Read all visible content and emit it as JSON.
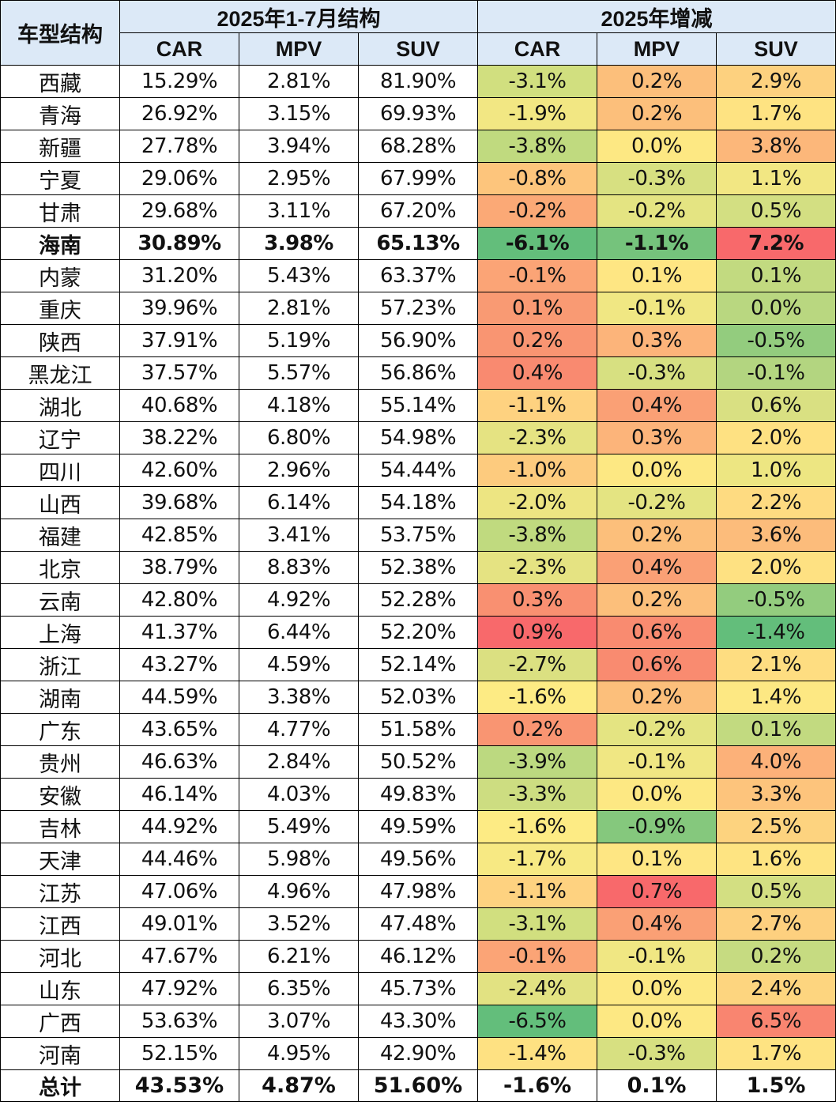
{
  "header": {
    "row_label": "车型结构",
    "group1": "2025年1-7月结构",
    "group2": "2025年增减",
    "columns": [
      "CAR",
      "MPV",
      "SUV",
      "CAR",
      "MPV",
      "SUV"
    ]
  },
  "rows": [
    {
      "name": "西藏",
      "values": [
        "15.29%",
        "2.81%",
        "81.90%",
        "-3.1%",
        "0.2%",
        "2.9%"
      ],
      "colors": [
        "#d1df7f",
        "#fcbf7b",
        "#fdd17f"
      ]
    },
    {
      "name": "青海",
      "values": [
        "26.92%",
        "3.15%",
        "69.93%",
        "-1.9%",
        "0.2%",
        "1.7%"
      ],
      "colors": [
        "#f2e783",
        "#fcbf7b",
        "#fee382"
      ]
    },
    {
      "name": "新疆",
      "values": [
        "27.78%",
        "3.94%",
        "68.28%",
        "-3.8%",
        "0.0%",
        "3.8%"
      ],
      "colors": [
        "#c0da7f",
        "#fde883",
        "#fcb77a"
      ]
    },
    {
      "name": "宁夏",
      "values": [
        "29.06%",
        "2.95%",
        "67.99%",
        "-0.8%",
        "-0.3%",
        "1.1%"
      ],
      "colors": [
        "#fdc57c",
        "#d7e081",
        "#f2e783"
      ]
    },
    {
      "name": "甘肃",
      "values": [
        "29.68%",
        "3.11%",
        "67.20%",
        "-0.2%",
        "-0.2%",
        "0.5%"
      ],
      "colors": [
        "#fba976",
        "#e4e482",
        "#d3df82"
      ]
    },
    {
      "name": "海南",
      "values": [
        "30.89%",
        "3.98%",
        "65.13%",
        "-6.1%",
        "-1.1%",
        "7.2%"
      ],
      "colors": [
        "#63be7b",
        "#75c37c",
        "#f8696b"
      ],
      "bold": true
    },
    {
      "name": "内蒙",
      "values": [
        "31.20%",
        "5.43%",
        "63.37%",
        "-0.1%",
        "0.1%",
        "0.1%"
      ],
      "colors": [
        "#fba476",
        "#fee683",
        "#c2da80"
      ]
    },
    {
      "name": "重庆",
      "values": [
        "39.96%",
        "2.81%",
        "57.23%",
        "0.1%",
        "-0.1%",
        "0.0%"
      ],
      "colors": [
        "#f99a73",
        "#f0e783",
        "#b9d780"
      ]
    },
    {
      "name": "陕西",
      "values": [
        "37.91%",
        "5.19%",
        "56.90%",
        "0.2%",
        "0.3%",
        "-0.5%"
      ],
      "colors": [
        "#f99572",
        "#fcb47a",
        "#93cc7e"
      ]
    },
    {
      "name": "黑龙江",
      "values": [
        "37.57%",
        "5.57%",
        "56.86%",
        "0.4%",
        "-0.3%",
        "-0.1%"
      ],
      "colors": [
        "#f98a70",
        "#d7e081",
        "#b3d580"
      ]
    },
    {
      "name": "湖北",
      "values": [
        "40.68%",
        "4.18%",
        "55.14%",
        "-1.1%",
        "0.4%",
        "0.6%"
      ],
      "colors": [
        "#fed280",
        "#faa075",
        "#d9e082"
      ]
    },
    {
      "name": "辽宁",
      "values": [
        "38.22%",
        "6.80%",
        "54.98%",
        "-2.3%",
        "0.3%",
        "2.0%"
      ],
      "colors": [
        "#e5e382",
        "#fcb47a",
        "#fee182"
      ]
    },
    {
      "name": "四川",
      "values": [
        "42.60%",
        "2.96%",
        "54.44%",
        "-1.0%",
        "0.0%",
        "1.0%"
      ],
      "colors": [
        "#fdcb7e",
        "#fde883",
        "#ede682"
      ]
    },
    {
      "name": "山西",
      "values": [
        "39.68%",
        "6.14%",
        "54.18%",
        "-2.0%",
        "-0.2%",
        "2.2%"
      ],
      "colors": [
        "#ede582",
        "#e4e482",
        "#fedb81"
      ]
    },
    {
      "name": "福建",
      "values": [
        "42.85%",
        "3.41%",
        "53.75%",
        "-3.8%",
        "0.2%",
        "3.6%"
      ],
      "colors": [
        "#c0da7f",
        "#fcbf7b",
        "#fcbc7b"
      ]
    },
    {
      "name": "北京",
      "values": [
        "38.79%",
        "8.83%",
        "52.38%",
        "-2.3%",
        "0.4%",
        "2.0%"
      ],
      "colors": [
        "#e5e382",
        "#faa075",
        "#fee182"
      ]
    },
    {
      "name": "云南",
      "values": [
        "42.80%",
        "4.92%",
        "52.28%",
        "0.3%",
        "0.2%",
        "-0.5%"
      ],
      "colors": [
        "#f99071",
        "#fcbf7b",
        "#93cc7e"
      ]
    },
    {
      "name": "上海",
      "values": [
        "41.37%",
        "6.44%",
        "52.20%",
        "0.9%",
        "0.6%",
        "-1.4%"
      ],
      "colors": [
        "#f8696b",
        "#f98b70",
        "#63be7b"
      ]
    },
    {
      "name": "浙江",
      "values": [
        "43.27%",
        "4.59%",
        "52.14%",
        "-2.7%",
        "0.6%",
        "2.1%"
      ],
      "colors": [
        "#dbe081",
        "#f98b70",
        "#fedd81"
      ]
    },
    {
      "name": "湖南",
      "values": [
        "44.59%",
        "3.38%",
        "52.03%",
        "-1.6%",
        "0.2%",
        "1.4%"
      ],
      "colors": [
        "#fdeb84",
        "#fcbf7b",
        "#fde883"
      ]
    },
    {
      "name": "广东",
      "values": [
        "43.65%",
        "4.77%",
        "51.58%",
        "0.2%",
        "-0.2%",
        "0.1%"
      ],
      "colors": [
        "#f99572",
        "#e4e482",
        "#c2da80"
      ]
    },
    {
      "name": "贵州",
      "values": [
        "46.63%",
        "2.84%",
        "50.52%",
        "-3.9%",
        "-0.1%",
        "4.0%"
      ],
      "colors": [
        "#bcd980",
        "#f0e783",
        "#fcb179"
      ]
    },
    {
      "name": "安徽",
      "values": [
        "46.14%",
        "4.03%",
        "49.83%",
        "-3.3%",
        "0.0%",
        "3.3%"
      ],
      "colors": [
        "#cddd81",
        "#fde883",
        "#fdc47c"
      ]
    },
    {
      "name": "吉林",
      "values": [
        "44.92%",
        "5.49%",
        "49.59%",
        "-1.6%",
        "-0.9%",
        "2.5%"
      ],
      "colors": [
        "#fdeb84",
        "#85c87d",
        "#fdd37f"
      ]
    },
    {
      "name": "天津",
      "values": [
        "44.46%",
        "5.98%",
        "49.56%",
        "-1.7%",
        "0.1%",
        "1.6%"
      ],
      "colors": [
        "#f7e983",
        "#fee683",
        "#fee482"
      ]
    },
    {
      "name": "江苏",
      "values": [
        "47.06%",
        "4.96%",
        "47.98%",
        "-1.1%",
        "0.7%",
        "0.5%"
      ],
      "colors": [
        "#fed280",
        "#f8696b",
        "#d3df82"
      ]
    },
    {
      "name": "江西",
      "values": [
        "49.01%",
        "3.52%",
        "47.48%",
        "-3.1%",
        "0.4%",
        "2.7%"
      ],
      "colors": [
        "#d1df7f",
        "#faa075",
        "#fdd07f"
      ]
    },
    {
      "name": "河北",
      "values": [
        "47.67%",
        "6.21%",
        "46.12%",
        "-0.1%",
        "-0.1%",
        "0.2%"
      ],
      "colors": [
        "#fba476",
        "#f0e783",
        "#c6db81"
      ]
    },
    {
      "name": "山东",
      "values": [
        "47.92%",
        "6.35%",
        "45.73%",
        "-2.4%",
        "0.0%",
        "2.4%"
      ],
      "colors": [
        "#e2e282",
        "#fde883",
        "#fdd57f"
      ]
    },
    {
      "name": "广西",
      "values": [
        "53.63%",
        "3.07%",
        "43.30%",
        "-6.5%",
        "0.0%",
        "6.5%"
      ],
      "colors": [
        "#63be7b",
        "#fde883",
        "#f98570"
      ]
    },
    {
      "name": "河南",
      "values": [
        "52.15%",
        "4.95%",
        "42.90%",
        "-1.4%",
        "-0.3%",
        "1.7%"
      ],
      "colors": [
        "#fee182",
        "#d7e081",
        "#fee382"
      ]
    }
  ],
  "total": {
    "name": "总计",
    "values": [
      "43.53%",
      "4.87%",
      "51.60%",
      "-1.6%",
      "0.1%",
      "1.5%"
    ]
  }
}
